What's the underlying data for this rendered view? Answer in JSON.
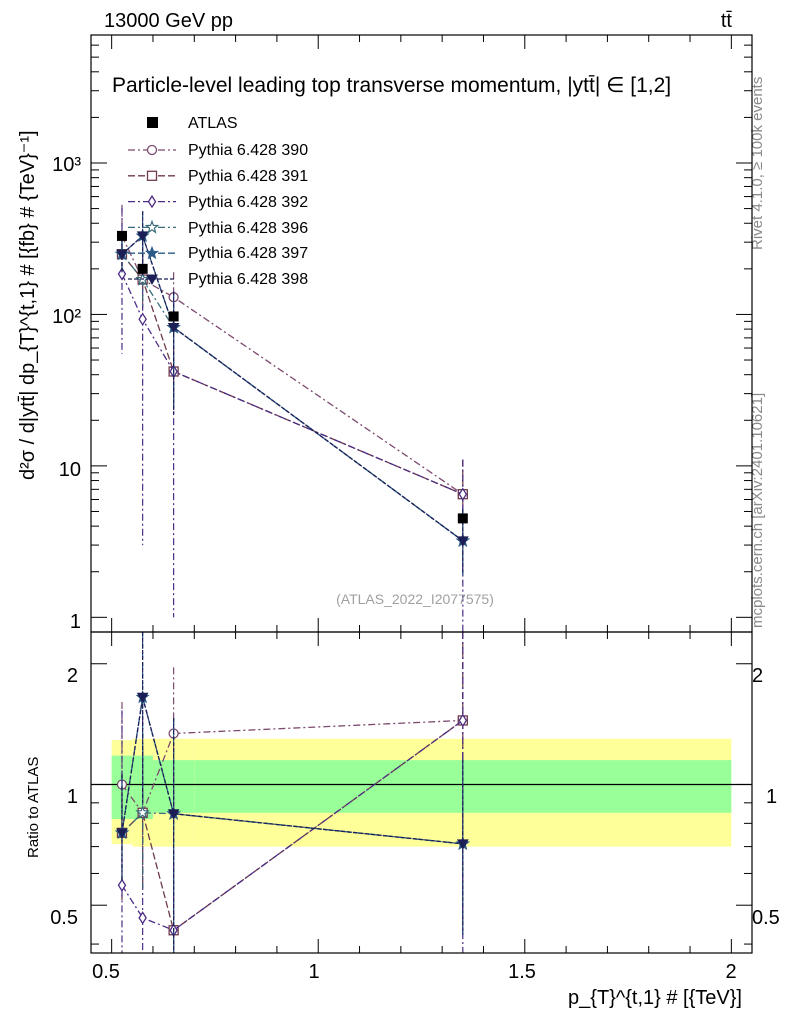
{
  "header": {
    "energy_label": "13000 GeV pp",
    "process_label": "tt̄"
  },
  "side_labels": {
    "rivet": "Rivet 4.1.0, ≥ 100k events",
    "mcplots": "mcplots.cern.ch [arXiv:2401.10621]"
  },
  "chart_data": {
    "type": "scatter",
    "title": "Particle-level leading top transverse momentum, |ytt̄| ∈ [1,2]",
    "watermark": "(ATLAS_2022_I2077575)",
    "xlabel": "p_{T}^{t,1} # [{TeV}]",
    "ylabel": "d²σ / d|ytt̄| dp_{T}^{t,1} # [{fb} # {TeV}⁻¹]",
    "ratio_ylabel": "Ratio to ATLAS",
    "xlim": [
      0.45,
      2.05
    ],
    "ylim": [
      0.8,
      7000
    ],
    "ratio_ylim": [
      0.38,
      2.4
    ],
    "x_ticks": [
      "0.5",
      "1",
      "1.5",
      "2"
    ],
    "y_ticks": [
      "1",
      "10",
      "10²",
      "10³"
    ],
    "ratio_ticks": [
      "0.5",
      "1",
      "2"
    ],
    "bins": [
      [
        0.5,
        0.55
      ],
      [
        0.55,
        0.6
      ],
      [
        0.6,
        0.7
      ],
      [
        0.7,
        2.0
      ]
    ],
    "x": [
      0.525,
      0.575,
      0.65,
      1.35
    ],
    "data": {
      "name": "ATLAS",
      "color": "#000000",
      "values": [
        330,
        200,
        97,
        4.5
      ],
      "band_inner": [
        0.18,
        0.18,
        0.15,
        0.15
      ],
      "band_outer": [
        0.29,
        0.3,
        0.3,
        0.3
      ]
    },
    "series": [
      {
        "name": "Pythia 6.428 390",
        "color": "#7c4a6e",
        "marker": "circle",
        "dash": "7,3,2,3",
        "values": [
          330,
          170,
          130,
          6.5
        ],
        "err_lo": [
          100,
          60,
          45,
          4.5
        ],
        "err_hi": [
          200,
          80,
          60,
          4.5
        ]
      },
      {
        "name": "Pythia 6.428 391",
        "color": "#6f3a4a",
        "marker": "square",
        "dash": "7,3",
        "values": [
          250,
          170,
          42,
          6.5
        ],
        "err_lo": [
          80,
          60,
          15,
          4.5
        ],
        "err_hi": [
          100,
          80,
          20,
          4.5
        ]
      },
      {
        "name": "Pythia 6.428 392",
        "color": "#4c2c84",
        "marker": "diamond",
        "dash": "7,3,2,3",
        "values": [
          185,
          93,
          42,
          6.5
        ],
        "err_lo": [
          130,
          90,
          41,
          6.0
        ],
        "err_hi": [
          320,
          200,
          60,
          4.5
        ]
      },
      {
        "name": "Pythia 6.428 396",
        "color": "#3a6b7a",
        "marker": "star-open",
        "dash": "7,3,2,3",
        "values": [
          250,
          170,
          82,
          3.2
        ],
        "err_lo": [
          60,
          60,
          60,
          1.3
        ],
        "err_hi": [
          100,
          100,
          60,
          2.0
        ]
      },
      {
        "name": "Pythia 6.428 397",
        "color": "#2b5a88",
        "marker": "star",
        "dash": "7,3",
        "values": [
          250,
          330,
          82,
          3.2
        ],
        "err_lo": [
          60,
          150,
          60,
          1.3
        ],
        "err_hi": [
          100,
          150,
          60,
          2.0
        ]
      },
      {
        "name": "Pythia 6.428 398",
        "color": "#1c1f55",
        "marker": "triangle-down",
        "dash": "4,2",
        "values": [
          250,
          330,
          82,
          3.2
        ],
        "err_lo": [
          60,
          150,
          60,
          1.3
        ],
        "err_hi": [
          100,
          150,
          60,
          2.0
        ]
      }
    ],
    "legend_position": "top-left"
  }
}
